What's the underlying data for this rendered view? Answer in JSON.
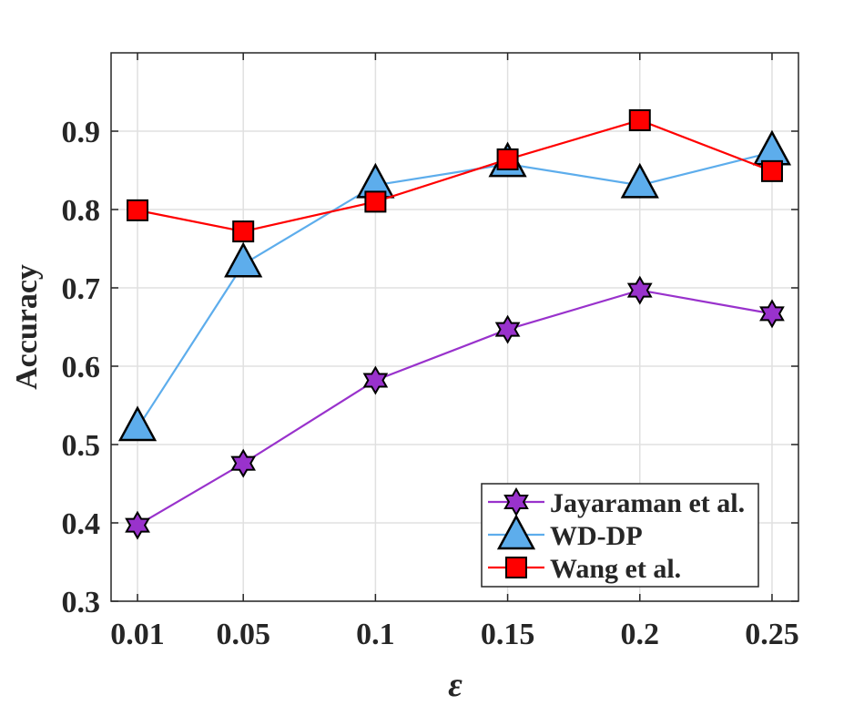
{
  "chart_data": {
    "type": "line",
    "title": "",
    "xlabel": "ε",
    "ylabel": "Accuracy",
    "xlim": [
      0,
      0.26
    ],
    "ylim": [
      0.3,
      1.0
    ],
    "grid": true,
    "legend_position": "bottom-right",
    "x": [
      0.01,
      0.05,
      0.1,
      0.15,
      0.2,
      0.25
    ],
    "x_tick_labels": [
      "0.01",
      "0.05",
      "0.1",
      "0.15",
      "0.2",
      "0.25"
    ],
    "y_ticks": [
      0.3,
      0.4,
      0.5,
      0.6,
      0.7,
      0.8,
      0.9
    ],
    "y_tick_labels": [
      "0.3",
      "0.4",
      "0.5",
      "0.6",
      "0.7",
      "0.8",
      "0.9"
    ],
    "series": [
      {
        "name": "Jayaraman et al.",
        "color": "#9932CC",
        "marker": "hexagram",
        "values": [
          0.397,
          0.476,
          0.582,
          0.647,
          0.697,
          0.667
        ]
      },
      {
        "name": "WD-DP",
        "color": "#5DADEC",
        "marker": "triangle",
        "values": [
          0.521,
          0.73,
          0.831,
          0.858,
          0.831,
          0.873
        ]
      },
      {
        "name": "Wang et al.",
        "color": "#FF0000",
        "marker": "square",
        "values": [
          0.799,
          0.772,
          0.81,
          0.864,
          0.914,
          0.849
        ]
      }
    ]
  }
}
